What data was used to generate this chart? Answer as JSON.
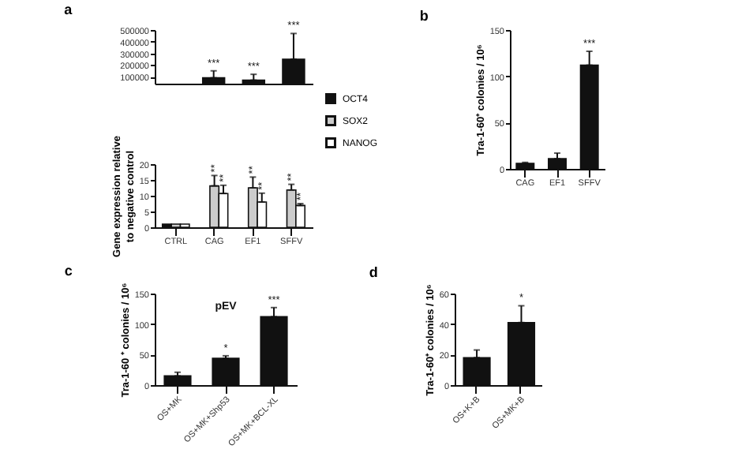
{
  "chart_data": [
    {
      "type": "bar",
      "title": "a",
      "categories": [
        "CTRL",
        "CAG",
        "EF1",
        "SFFV"
      ],
      "series": [
        {
          "color": "#111111",
          "values": [
            null,
            90000,
            70000,
            250000
          ],
          "errors": [
            null,
            60000,
            50000,
            220000
          ]
        }
      ],
      "ylim": [
        40000,
        500000
      ],
      "yticks": [
        100000,
        200000,
        300000,
        400000,
        500000
      ],
      "tick_labels": "y",
      "annotations": [
        {
          "text": "***",
          "x": "CAG",
          "y": 150000
        },
        {
          "text": "***",
          "x": "EF1",
          "y": 120000
        },
        {
          "text": "***",
          "x": "SFFV",
          "y": 470000
        }
      ]
    },
    {
      "type": "bar",
      "categories": [
        "CTRL",
        "CAG",
        "EF1",
        "SFFV"
      ],
      "series": [
        {
          "name": "OCT4",
          "color": "#111111",
          "values": [
            1,
            null,
            null,
            null
          ]
        },
        {
          "name": "SOX2",
          "color": "#cccccc",
          "values": [
            1,
            13.1,
            12.5,
            11.8
          ],
          "errors": [
            null,
            3.3,
            3.4,
            1.8
          ]
        },
        {
          "name": "NANOG",
          "color": "#ffffff",
          "values": [
            1,
            10.7,
            8,
            6.9
          ],
          "errors": [
            null,
            2.6,
            2.8,
            0.6
          ]
        }
      ],
      "ylim": [
        0,
        20
      ],
      "yticks": [
        0,
        5,
        10,
        15,
        20
      ],
      "ylabel": "Gene expression relative\nto negative control",
      "legend": "top right",
      "annotations": [
        {
          "text": "**",
          "x": "CAG",
          "y": 16.4
        },
        {
          "text": "**",
          "x": "CAG",
          "y": 13.3
        },
        {
          "text": "**",
          "x": "EF1",
          "y": 15.9
        },
        {
          "text": "**",
          "x": "EF1",
          "y": 10.8
        },
        {
          "text": "**",
          "x": "SFFV",
          "y": 13.6
        },
        {
          "text": "**",
          "x": "SFFV",
          "y": 7.5
        }
      ]
    },
    {
      "type": "bar",
      "title": "b",
      "categories": [
        "CAG",
        "EF1",
        "SFFV"
      ],
      "values": [
        6,
        11,
        112
      ],
      "errors": [
        1,
        6,
        15
      ],
      "color": "#111111",
      "ylim": [
        0,
        150
      ],
      "yticks": [
        0,
        50,
        100,
        150
      ],
      "ylabel": "Tra-1-60⁺ colonies / 10⁶",
      "annotations": [
        {
          "text": "***",
          "x": "SFFV",
          "y": 127
        }
      ]
    },
    {
      "type": "bar",
      "title": "c",
      "categories": [
        "OS+MK",
        "OS+MK+Shp53",
        "OS+MK+BCL-XL"
      ],
      "values": [
        15,
        44,
        112
      ],
      "errors": [
        6,
        4,
        15
      ],
      "color": "#111111",
      "ylim": [
        0,
        150
      ],
      "yticks": [
        0,
        50,
        100,
        150
      ],
      "ylabel": "Tra-1-60 ⁺ colonies / 10⁶",
      "annotations": [
        "pEV",
        {
          "text": "*",
          "x": "OS+MK+Shp53",
          "y": 48
        },
        {
          "text": "***",
          "x": "OS+MK+BCL-XL",
          "y": 127
        }
      ]
    },
    {
      "type": "bar",
      "title": "d",
      "categories": [
        "OS+K+B",
        "OS+MK+B"
      ],
      "values": [
        18,
        41
      ],
      "errors": [
        5,
        11
      ],
      "color": "#111111",
      "ylim": [
        0,
        60
      ],
      "yticks": [
        0,
        20,
        40,
        60
      ],
      "ylabel": "Tra-1-60⁺ colonies / 10⁶",
      "annotations": [
        {
          "text": "*",
          "x": "OS+MK+B",
          "y": 52
        }
      ]
    }
  ]
}
